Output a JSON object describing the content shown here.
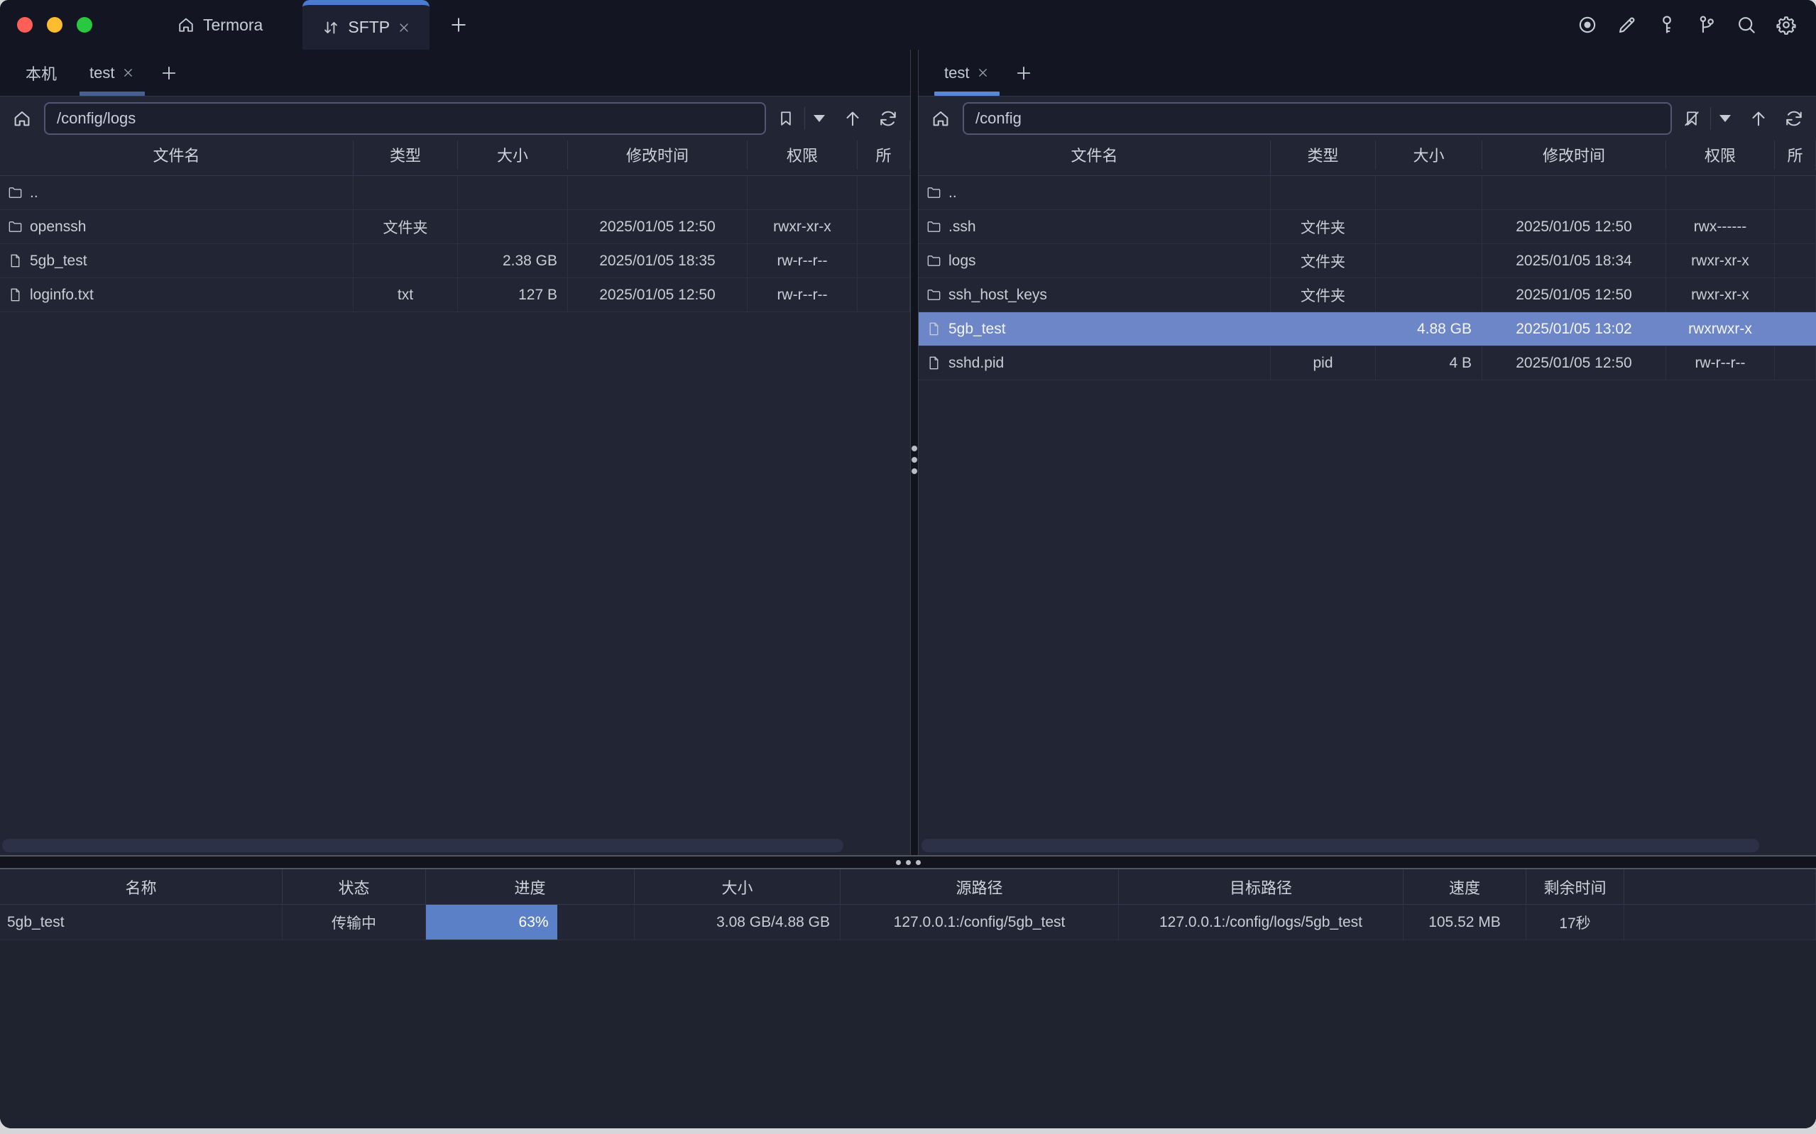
{
  "titlebar": {
    "app_tab": {
      "label": "Termora"
    },
    "sftp_tab": {
      "label": "SFTP"
    },
    "toolbar_icons": [
      "record-icon",
      "edit-icon",
      "key-icon",
      "branch-icon",
      "search-icon",
      "settings-icon"
    ]
  },
  "colors": {
    "selection": "#6d86c8",
    "progress_fill": "#5c80c8",
    "active_tab_underline_focused": "#5b87d8",
    "active_tab_underline_unfocused": "#46618f",
    "sftp_tab_accent": "#4a7bd2"
  },
  "left_pane": {
    "tabs": [
      {
        "label": "本机",
        "active": false
      },
      {
        "label": "test",
        "active": true,
        "closable": true
      }
    ],
    "path": "/config/logs",
    "columns": [
      "文件名",
      "类型",
      "大小",
      "修改时间",
      "权限",
      "所"
    ],
    "rows": [
      {
        "name": "..",
        "icon": "folder",
        "type": "",
        "size": "",
        "mtime": "",
        "perm": ""
      },
      {
        "name": "openssh",
        "icon": "folder",
        "type": "文件夹",
        "size": "",
        "mtime": "2025/01/05 12:50",
        "perm": "rwxr-xr-x"
      },
      {
        "name": "5gb_test",
        "icon": "file",
        "type": "",
        "size": "2.38 GB",
        "mtime": "2025/01/05 18:35",
        "perm": "rw-r--r--"
      },
      {
        "name": "loginfo.txt",
        "icon": "file",
        "type": "txt",
        "size": "127 B",
        "mtime": "2025/01/05 12:50",
        "perm": "rw-r--r--"
      }
    ]
  },
  "right_pane": {
    "tabs": [
      {
        "label": "test",
        "active": true,
        "closable": true
      }
    ],
    "path": "/config",
    "columns": [
      "文件名",
      "类型",
      "大小",
      "修改时间",
      "权限",
      "所"
    ],
    "rows": [
      {
        "name": "..",
        "icon": "folder",
        "type": "",
        "size": "",
        "mtime": "",
        "perm": ""
      },
      {
        "name": ".ssh",
        "icon": "folder",
        "type": "文件夹",
        "size": "",
        "mtime": "2025/01/05 12:50",
        "perm": "rwx------"
      },
      {
        "name": "logs",
        "icon": "folder",
        "type": "文件夹",
        "size": "",
        "mtime": "2025/01/05 18:34",
        "perm": "rwxr-xr-x"
      },
      {
        "name": "ssh_host_keys",
        "icon": "folder",
        "type": "文件夹",
        "size": "",
        "mtime": "2025/01/05 12:50",
        "perm": "rwxr-xr-x"
      },
      {
        "name": "5gb_test",
        "icon": "file",
        "type": "",
        "size": "4.88 GB",
        "mtime": "2025/01/05 13:02",
        "perm": "rwxrwxr-x",
        "selected": true
      },
      {
        "name": "sshd.pid",
        "icon": "file",
        "type": "pid",
        "size": "4 B",
        "mtime": "2025/01/05 12:50",
        "perm": "rw-r--r--"
      }
    ]
  },
  "transfers": {
    "columns": [
      "名称",
      "状态",
      "进度",
      "大小",
      "源路径",
      "目标路径",
      "速度",
      "剩余时间"
    ],
    "rows": [
      {
        "name": "5gb_test",
        "status": "传输中",
        "progress_label": "63%",
        "progress_pct": 63,
        "size": "3.08 GB/4.88 GB",
        "source": "127.0.0.1:/config/5gb_test",
        "target": "127.0.0.1:/config/logs/5gb_test",
        "speed": "105.52 MB",
        "remaining": "17秒"
      }
    ]
  }
}
